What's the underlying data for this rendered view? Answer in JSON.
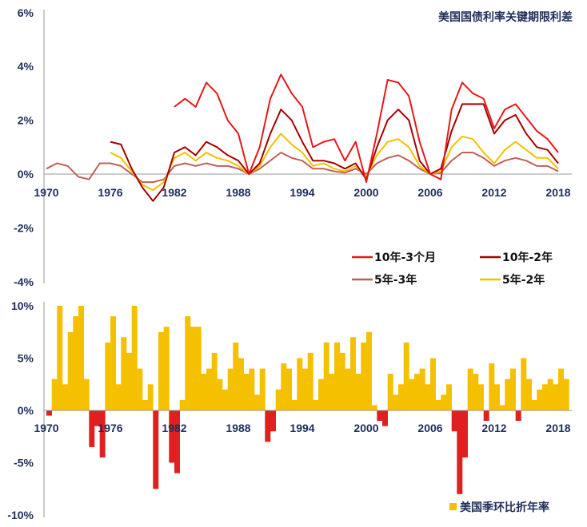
{
  "chart_data": [
    {
      "type": "line",
      "title": "美国国债利率关键期限利差",
      "xlabel": "",
      "ylabel": "",
      "ylim": [
        -4,
        6
      ],
      "yticks": [
        "6%",
        "4%",
        "2%",
        "0%",
        "-2%",
        "-4%"
      ],
      "ytick_values": [
        6,
        4,
        2,
        0,
        -2,
        -4
      ],
      "xticks": [
        "1970",
        "1976",
        "1982",
        "1988",
        "1994",
        "2000",
        "2006",
        "2012",
        "2018"
      ],
      "xtick_values": [
        1970,
        1976,
        1982,
        1988,
        1994,
        2000,
        2006,
        2012,
        2018
      ],
      "legend_position": "bottom-right",
      "x": [
        1970,
        1971,
        1972,
        1973,
        1974,
        1975,
        1976,
        1977,
        1978,
        1979,
        1980,
        1981,
        1982,
        1983,
        1984,
        1985,
        1986,
        1987,
        1988,
        1989,
        1990,
        1991,
        1992,
        1993,
        1994,
        1995,
        1996,
        1997,
        1998,
        1999,
        2000,
        2001,
        2002,
        2003,
        2004,
        2005,
        2006,
        2007,
        2008,
        2009,
        2010,
        2011,
        2012,
        2013,
        2014,
        2015,
        2016,
        2017,
        2018
      ],
      "series": [
        {
          "name": "5年-3年",
          "color": "#c0605a",
          "values": [
            0.2,
            0.4,
            0.3,
            -0.1,
            -0.2,
            0.4,
            0.4,
            0.3,
            0.0,
            -0.3,
            -0.3,
            -0.2,
            0.3,
            0.4,
            0.3,
            0.4,
            0.3,
            0.3,
            0.2,
            0.0,
            0.2,
            0.5,
            0.8,
            0.6,
            0.5,
            0.2,
            0.2,
            0.1,
            0.05,
            0.2,
            0.0,
            0.4,
            0.6,
            0.7,
            0.5,
            0.2,
            0.0,
            0.05,
            0.5,
            0.8,
            0.8,
            0.6,
            0.3,
            0.5,
            0.6,
            0.5,
            0.3,
            0.3,
            0.1
          ]
        },
        {
          "name": "5年-2年",
          "color": "#f5c000",
          "values": [
            null,
            null,
            null,
            null,
            null,
            null,
            0.8,
            0.6,
            0.1,
            -0.4,
            -0.6,
            -0.3,
            0.6,
            0.8,
            0.5,
            0.8,
            0.6,
            0.5,
            0.3,
            0.0,
            0.3,
            1.0,
            1.5,
            1.1,
            0.8,
            0.3,
            0.4,
            0.2,
            0.1,
            0.3,
            -0.1,
            0.7,
            1.2,
            1.3,
            1.0,
            0.3,
            0.0,
            0.1,
            1.0,
            1.4,
            1.3,
            0.8,
            0.4,
            0.9,
            1.2,
            0.9,
            0.6,
            0.6,
            0.2
          ]
        },
        {
          "name": "10年-2年",
          "color": "#a80000",
          "values": [
            null,
            null,
            null,
            null,
            null,
            null,
            1.2,
            1.1,
            0.2,
            -0.5,
            -1.0,
            -0.5,
            0.8,
            1.0,
            0.7,
            1.2,
            1.0,
            0.7,
            0.5,
            0.0,
            0.4,
            1.5,
            2.4,
            2.0,
            1.2,
            0.5,
            0.5,
            0.4,
            0.2,
            0.4,
            -0.2,
            1.0,
            2.0,
            2.4,
            2.0,
            0.5,
            0.0,
            0.2,
            1.6,
            2.6,
            2.6,
            2.6,
            1.5,
            2.0,
            2.2,
            1.5,
            1.0,
            0.9,
            0.4
          ]
        },
        {
          "name": "10年-3个月",
          "color": "#e81818",
          "values": [
            null,
            null,
            null,
            null,
            null,
            null,
            null,
            null,
            null,
            null,
            null,
            null,
            2.5,
            2.8,
            2.5,
            3.4,
            3.0,
            2.0,
            1.5,
            0.0,
            1.0,
            2.8,
            3.7,
            3.0,
            2.5,
            1.0,
            1.2,
            1.3,
            0.5,
            1.2,
            -0.3,
            1.5,
            3.5,
            3.4,
            2.9,
            1.2,
            0.0,
            -0.2,
            2.4,
            3.4,
            3.0,
            2.8,
            1.7,
            2.4,
            2.6,
            2.1,
            1.6,
            1.3,
            0.8
          ]
        }
      ]
    },
    {
      "type": "bar",
      "title": "",
      "xlabel": "",
      "ylabel": "",
      "ylim": [
        -10,
        10
      ],
      "yticks": [
        "10%",
        "5%",
        "0%",
        "-5%",
        "-10%"
      ],
      "ytick_values": [
        10,
        5,
        0,
        -5,
        -10
      ],
      "xticks": [
        "1970",
        "1976",
        "1982",
        "1988",
        "1994",
        "2000",
        "2006",
        "2012",
        "2018"
      ],
      "xtick_values": [
        1970,
        1976,
        1982,
        1988,
        1994,
        2000,
        2006,
        2012,
        2018
      ],
      "legend_position": "bottom-right",
      "positive_color": "#f5c000",
      "negative_color": "#e02020",
      "series": [
        {
          "name": "美国季环比折年率",
          "color": "#f5c000",
          "x_start": 1970,
          "step": 0.5,
          "values": [
            -0.5,
            3.0,
            10,
            2.5,
            7.5,
            9.0,
            10,
            3.0,
            -3.5,
            -1.5,
            -4.5,
            6.5,
            9.0,
            2.5,
            7.0,
            5.5,
            10,
            4.0,
            1.0,
            2.5,
            -7.5,
            7.5,
            8.0,
            -5.0,
            -6.0,
            1.0,
            9.0,
            8.0,
            8.0,
            3.5,
            4.0,
            5.5,
            3.0,
            2.0,
            4.0,
            6.5,
            5.0,
            3.5,
            4.0,
            1.5,
            4.0,
            -3.0,
            -2.0,
            2.0,
            4.5,
            4.0,
            1.0,
            5.0,
            4.0,
            5.5,
            1.0,
            3.0,
            6.5,
            3.5,
            6.5,
            5.5,
            4.0,
            7.0,
            3.5,
            6.5,
            7.5,
            0.5,
            -1.0,
            -1.5,
            3.5,
            1.5,
            2.5,
            6.5,
            3.0,
            3.5,
            4.0,
            2.5,
            5.0,
            1.0,
            1.5,
            2.5,
            -2.0,
            -8.0,
            -4.5,
            4.0,
            3.5,
            2.5,
            -1.0,
            4.5,
            2.5,
            0.5,
            3.0,
            4.0,
            -1.0,
            5.0,
            3.0,
            1.0,
            2.0,
            2.5,
            3.0,
            2.5,
            4.0,
            3.0
          ]
        }
      ]
    }
  ]
}
